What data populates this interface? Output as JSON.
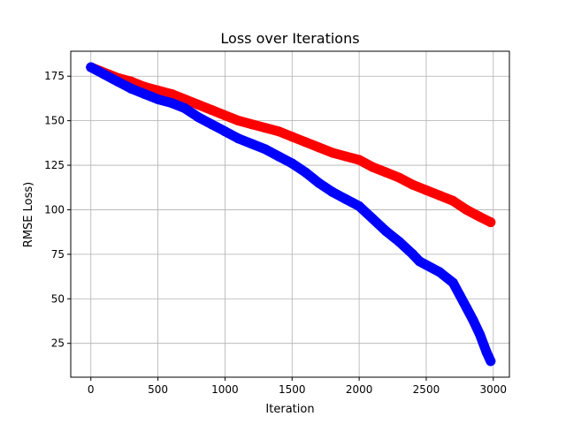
{
  "chart_data": {
    "type": "line",
    "title": "Loss over Iterations",
    "xlabel": "Iteration",
    "ylabel": "RMSE Loss)",
    "xlim": [
      -150,
      3120
    ],
    "ylim": [
      6,
      189
    ],
    "x_ticks": [
      0,
      500,
      1000,
      1500,
      2000,
      2500,
      3000
    ],
    "y_ticks": [
      25,
      50,
      75,
      100,
      125,
      150,
      175
    ],
    "x_tick_labels": [
      "0",
      "500",
      "1000",
      "1500",
      "2000",
      "2500",
      "3000"
    ],
    "y_tick_labels": [
      "25",
      "50",
      "75",
      "100",
      "125",
      "150",
      "175"
    ],
    "grid": true,
    "legend": "none",
    "series": [
      {
        "color": "#ff0000",
        "x": [
          0,
          100,
          200,
          300,
          400,
          500,
          600,
          700,
          800,
          900,
          1000,
          1100,
          1200,
          1300,
          1400,
          1500,
          1600,
          1700,
          1800,
          1900,
          2000,
          2100,
          2200,
          2300,
          2400,
          2500,
          2600,
          2700,
          2800,
          2900,
          2980
        ],
        "values": [
          180,
          177,
          174,
          172,
          169,
          167,
          165,
          162,
          159,
          156,
          153,
          150,
          148,
          146,
          144,
          141,
          138,
          135,
          132,
          130,
          128,
          124,
          121,
          118,
          114,
          111,
          108,
          105,
          100,
          96,
          93
        ]
      },
      {
        "color": "#0000ff",
        "x": [
          0,
          100,
          200,
          300,
          400,
          500,
          600,
          700,
          800,
          900,
          1000,
          1100,
          1200,
          1300,
          1400,
          1500,
          1600,
          1700,
          1800,
          1900,
          2000,
          2100,
          2200,
          2300,
          2400,
          2450,
          2500,
          2600,
          2700,
          2750,
          2800,
          2850,
          2900,
          2950,
          2980
        ],
        "values": [
          180,
          176,
          172,
          168,
          165,
          162,
          160,
          157,
          152,
          148,
          144,
          140,
          137,
          134,
          130,
          126,
          121,
          115,
          110,
          106,
          102,
          95,
          88,
          82,
          75,
          71,
          69,
          65,
          59,
          52,
          45,
          38,
          30,
          20,
          15
        ]
      }
    ]
  }
}
